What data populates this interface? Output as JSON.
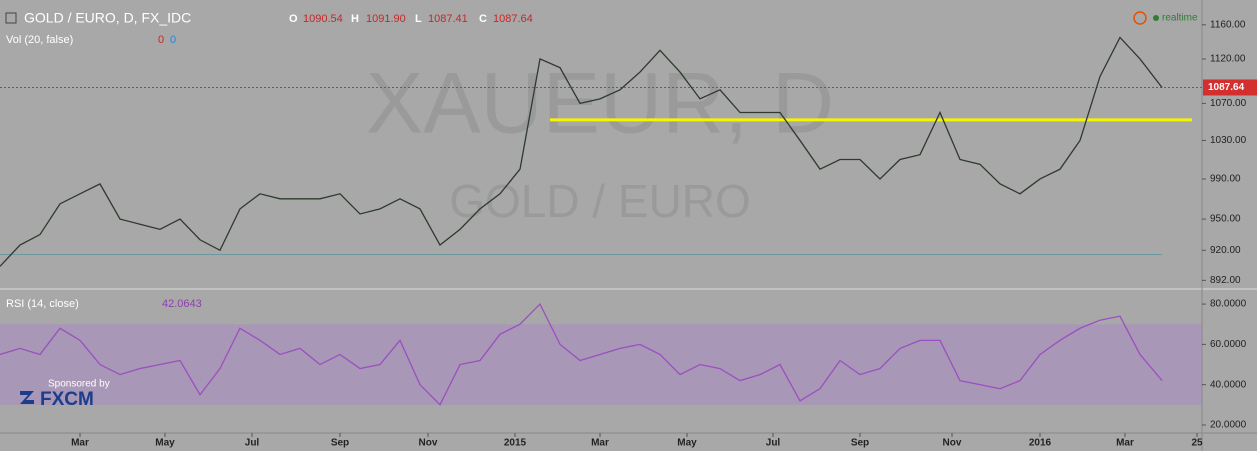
{
  "header": {
    "symbol": "GOLD / EURO, D, FX_IDC",
    "o_label": "O",
    "open": "1090.54",
    "h_label": "H",
    "high": "1091.90",
    "l_label": "L",
    "low": "1087.41",
    "c_label": "C",
    "close": "1087.64",
    "volume_study": "Vol (20, false)",
    "volume_values": [
      "0",
      "0"
    ],
    "realtime": "realtime",
    "watermark_symbol": "XAUEUR, D",
    "watermark_name": "GOLD / EURO",
    "sponsor": "Sponsored by",
    "sponsor_brand": "FXCM"
  },
  "chart_data": [
    {
      "type": "line",
      "log_scale": true,
      "color": "#2d3a2d",
      "x": [
        0,
        10,
        20,
        30,
        40,
        50,
        60,
        70,
        80,
        90,
        100,
        110,
        120,
        130,
        140,
        150,
        160,
        170,
        180,
        190,
        200,
        210,
        220,
        230,
        240,
        250,
        260,
        270,
        280,
        290,
        300,
        310,
        320,
        330,
        340,
        350,
        360,
        370,
        380,
        390,
        400,
        410,
        420,
        430,
        440,
        450,
        460,
        470,
        480,
        490,
        500,
        510,
        520,
        530,
        540,
        550,
        560,
        570,
        581
      ],
      "values": [
        905,
        925,
        935,
        965,
        975,
        985,
        950,
        945,
        940,
        950,
        930,
        920,
        960,
        975,
        970,
        970,
        970,
        975,
        955,
        960,
        970,
        960,
        925,
        940,
        960,
        975,
        1000,
        1120,
        1110,
        1070,
        1075,
        1085,
        1105,
        1130,
        1105,
        1075,
        1085,
        1060,
        1060,
        1060,
        1030,
        1000,
        1010,
        1010,
        990,
        1010,
        1015,
        1060,
        1010,
        1005,
        985,
        975,
        990,
        1000,
        1030,
        1100,
        1145,
        1120,
        1087.64
      ],
      "xlim": [
        0,
        601
      ],
      "ylim": [
        885,
        1190
      ],
      "xticks": [
        {
          "value": 40,
          "label": "Mar"
        },
        {
          "value": 82.5,
          "label": "May"
        },
        {
          "value": 126,
          "label": "Jul"
        },
        {
          "value": 170,
          "label": "Sep"
        },
        {
          "value": 214,
          "label": "Nov"
        },
        {
          "value": 257.5,
          "label": "2015"
        },
        {
          "value": 300,
          "label": "Mar"
        },
        {
          "value": 343.5,
          "label": "May"
        },
        {
          "value": 386.5,
          "label": "Jul"
        },
        {
          "value": 430,
          "label": "Sep"
        },
        {
          "value": 476,
          "label": "Nov"
        },
        {
          "value": 520,
          "label": "2016"
        },
        {
          "value": 562.5,
          "label": "Mar"
        },
        {
          "value": 598.5,
          "label": "25"
        }
      ],
      "yticks": [
        {
          "value": 1160,
          "label": "1160.00"
        },
        {
          "value": 1120,
          "label": "1120.00"
        },
        {
          "value": 1070,
          "label": "1070.00"
        },
        {
          "value": 1030,
          "label": "1030.00"
        },
        {
          "value": 990,
          "label": "990.00"
        },
        {
          "value": 950,
          "label": "950.00"
        },
        {
          "value": 920,
          "label": "920.00"
        },
        {
          "value": 892,
          "label": "892.00"
        }
      ],
      "support_level": {
        "value": 1052,
        "color": "#f5f500",
        "x": [
          275,
          596
        ]
      },
      "base_level": {
        "value": 916,
        "color": "#6a9aa0",
        "x": [
          0,
          581
        ]
      },
      "last_price_color": "#d32f2f"
    },
    {
      "type": "line",
      "title": "RSI (14, close)",
      "color": "#9b4fc0",
      "x": [
        0,
        10,
        20,
        30,
        40,
        50,
        60,
        70,
        80,
        90,
        100,
        110,
        120,
        130,
        140,
        150,
        160,
        170,
        180,
        190,
        200,
        210,
        220,
        230,
        240,
        250,
        260,
        270,
        280,
        290,
        300,
        310,
        320,
        330,
        340,
        350,
        360,
        370,
        380,
        390,
        400,
        410,
        420,
        430,
        440,
        450,
        460,
        470,
        480,
        490,
        500,
        510,
        520,
        530,
        540,
        550,
        560,
        570,
        581
      ],
      "values": [
        55,
        58,
        55,
        68,
        62,
        50,
        45,
        48,
        50,
        52,
        35,
        48,
        68,
        62,
        55,
        58,
        50,
        55,
        48,
        50,
        62,
        40,
        30,
        50,
        52,
        65,
        70,
        80,
        60,
        52,
        55,
        58,
        60,
        55,
        45,
        50,
        48,
        42,
        45,
        50,
        32,
        38,
        52,
        45,
        48,
        58,
        62,
        62,
        42,
        40,
        38,
        42,
        55,
        62,
        68,
        72,
        74,
        55,
        42.0643
      ],
      "xlim": [
        0,
        601
      ],
      "ylim": [
        17.5,
        86
      ],
      "yticks": [
        {
          "value": 80,
          "label": "80.0000"
        },
        {
          "value": 60,
          "label": "60.0000"
        },
        {
          "value": 40,
          "label": "40.0000"
        },
        {
          "value": 20,
          "label": "20.0000"
        }
      ],
      "band": [
        30,
        70
      ],
      "band_color": "rgba(170,120,210,0.35)"
    }
  ]
}
